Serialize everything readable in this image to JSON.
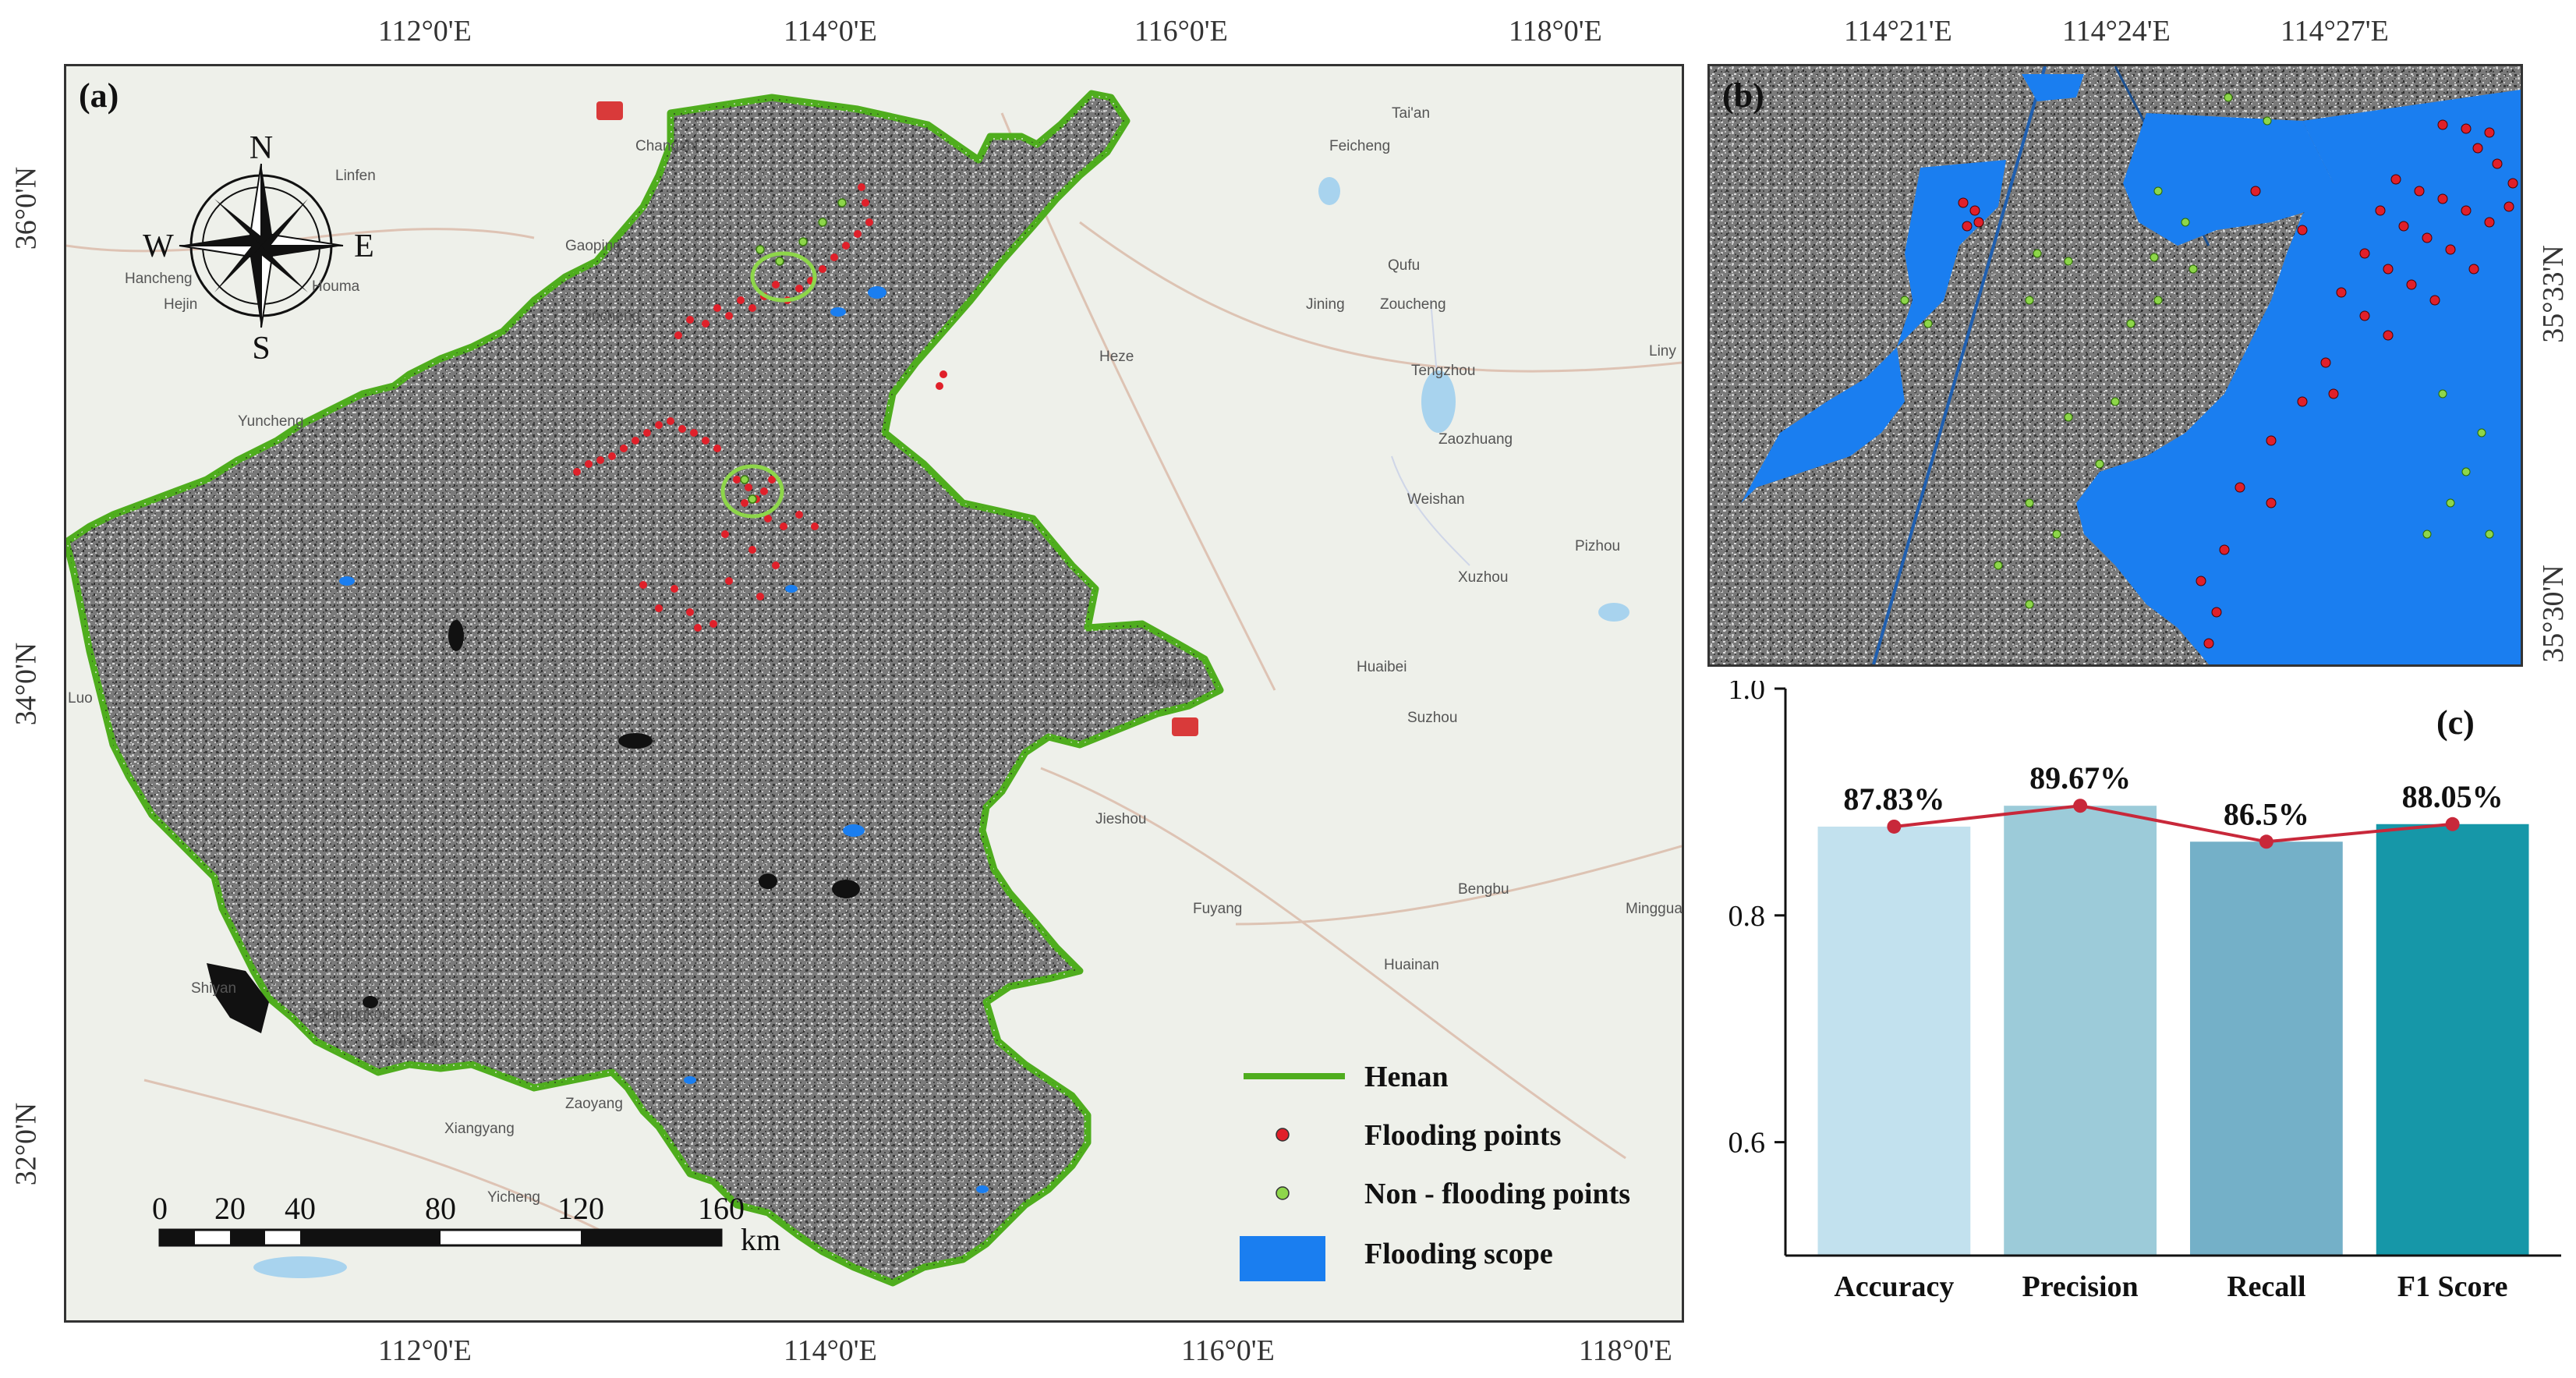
{
  "panels": {
    "a": "(a)",
    "b": "(b)",
    "c": "(c)"
  },
  "map_a": {
    "top_ticks": [
      "112°0'E",
      "114°0'E",
      "116°0'E",
      "118°0'E"
    ],
    "bottom_ticks": [
      "112°0'E",
      "114°0'E",
      "116°0'E",
      "118°0'E"
    ],
    "left_ticks": [
      "36°0'N",
      "34°0'N",
      "32°0'N"
    ],
    "compass": {
      "n": "N",
      "s": "S",
      "e": "E",
      "w": "W"
    },
    "cities": [
      "Changzhi",
      "Linfen",
      "Gaoping",
      "Jincheng",
      "Yuncheng",
      "Tai'an",
      "Jining",
      "Heze",
      "Zaozhuang",
      "Xuzhou",
      "Huaibei",
      "Bozhou",
      "Suzhou",
      "Bengbu",
      "Fuyang",
      "Huainan",
      "Shiyan",
      "Xiangyang",
      "Luo",
      "Liny",
      "Feicheng",
      "Qufu",
      "Zoucheng",
      "Tengzhou",
      "Weishan",
      "Pizhou",
      "Jieshou",
      "Laohekou",
      "Zaoyang",
      "Yicheng",
      "Mingguang",
      "Danjiangkou",
      "Hejin",
      "Hancheng",
      "Houma"
    ],
    "legend": [
      {
        "label": "Henan",
        "color": "#4fad1e"
      },
      {
        "label": "Flooding points",
        "color": "#e0202a"
      },
      {
        "label": "Non - flooding points",
        "color": "#8ed64a"
      },
      {
        "label": "Flooding scope",
        "color": "#1a7ef0"
      }
    ],
    "scale_bar": {
      "ticks": [
        "0",
        "20",
        "40",
        "80",
        "120",
        "160"
      ],
      "unit": "km"
    }
  },
  "map_b": {
    "top_ticks": [
      "114°21'E",
      "114°24'E",
      "114°27'E"
    ],
    "right_ticks": [
      "35°33'N",
      "35°30'N"
    ]
  },
  "chart_data": {
    "type": "bar",
    "categories": [
      "Accuracy",
      "Precision",
      "Recall",
      "F1 Score"
    ],
    "values": [
      0.8783,
      0.8967,
      0.865,
      0.8805
    ],
    "data_labels": [
      "87.83%",
      "89.67%",
      "86.5%",
      "88.05%"
    ],
    "ylim": [
      0.5,
      1.0
    ],
    "y_ticks": [
      "0.6",
      "0.8",
      "1.0"
    ],
    "bar_colors": [
      "#c2e1ee",
      "#9ccbd9",
      "#74b0c8",
      "#1697a8"
    ],
    "line_color": "#c8283a",
    "title": "",
    "xlabel": "",
    "ylabel": ""
  }
}
